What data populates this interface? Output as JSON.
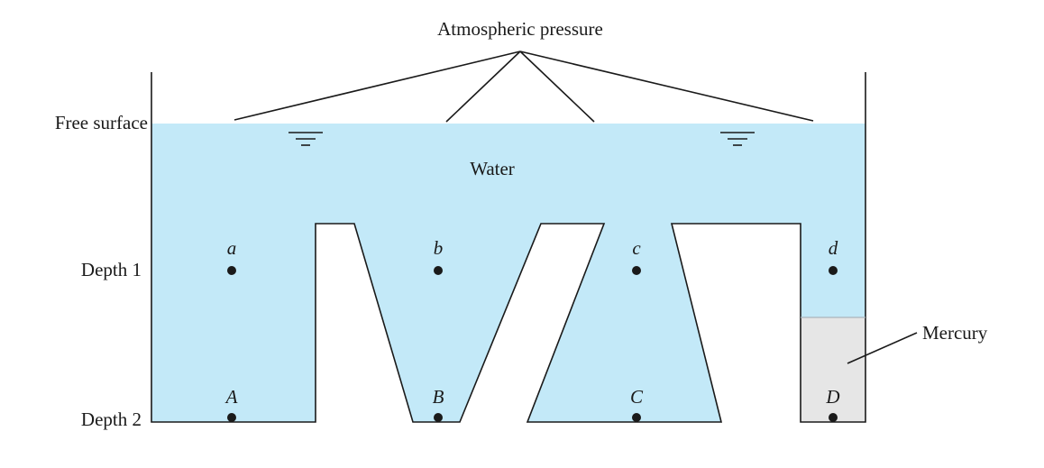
{
  "labels": {
    "atmospheric_pressure": "Atmospheric pressure",
    "free_surface": "Free surface",
    "water": "Water",
    "mercury": "Mercury",
    "depth_1": "Depth 1",
    "depth_2": "Depth 2"
  },
  "points": {
    "depth_1": [
      "a",
      "b",
      "c",
      "d"
    ],
    "depth_2": [
      "A",
      "B",
      "C",
      "D"
    ]
  },
  "colors": {
    "water": "#c3e9f8",
    "mercury": "#e6e6e6",
    "line": "#1a1a1a"
  }
}
